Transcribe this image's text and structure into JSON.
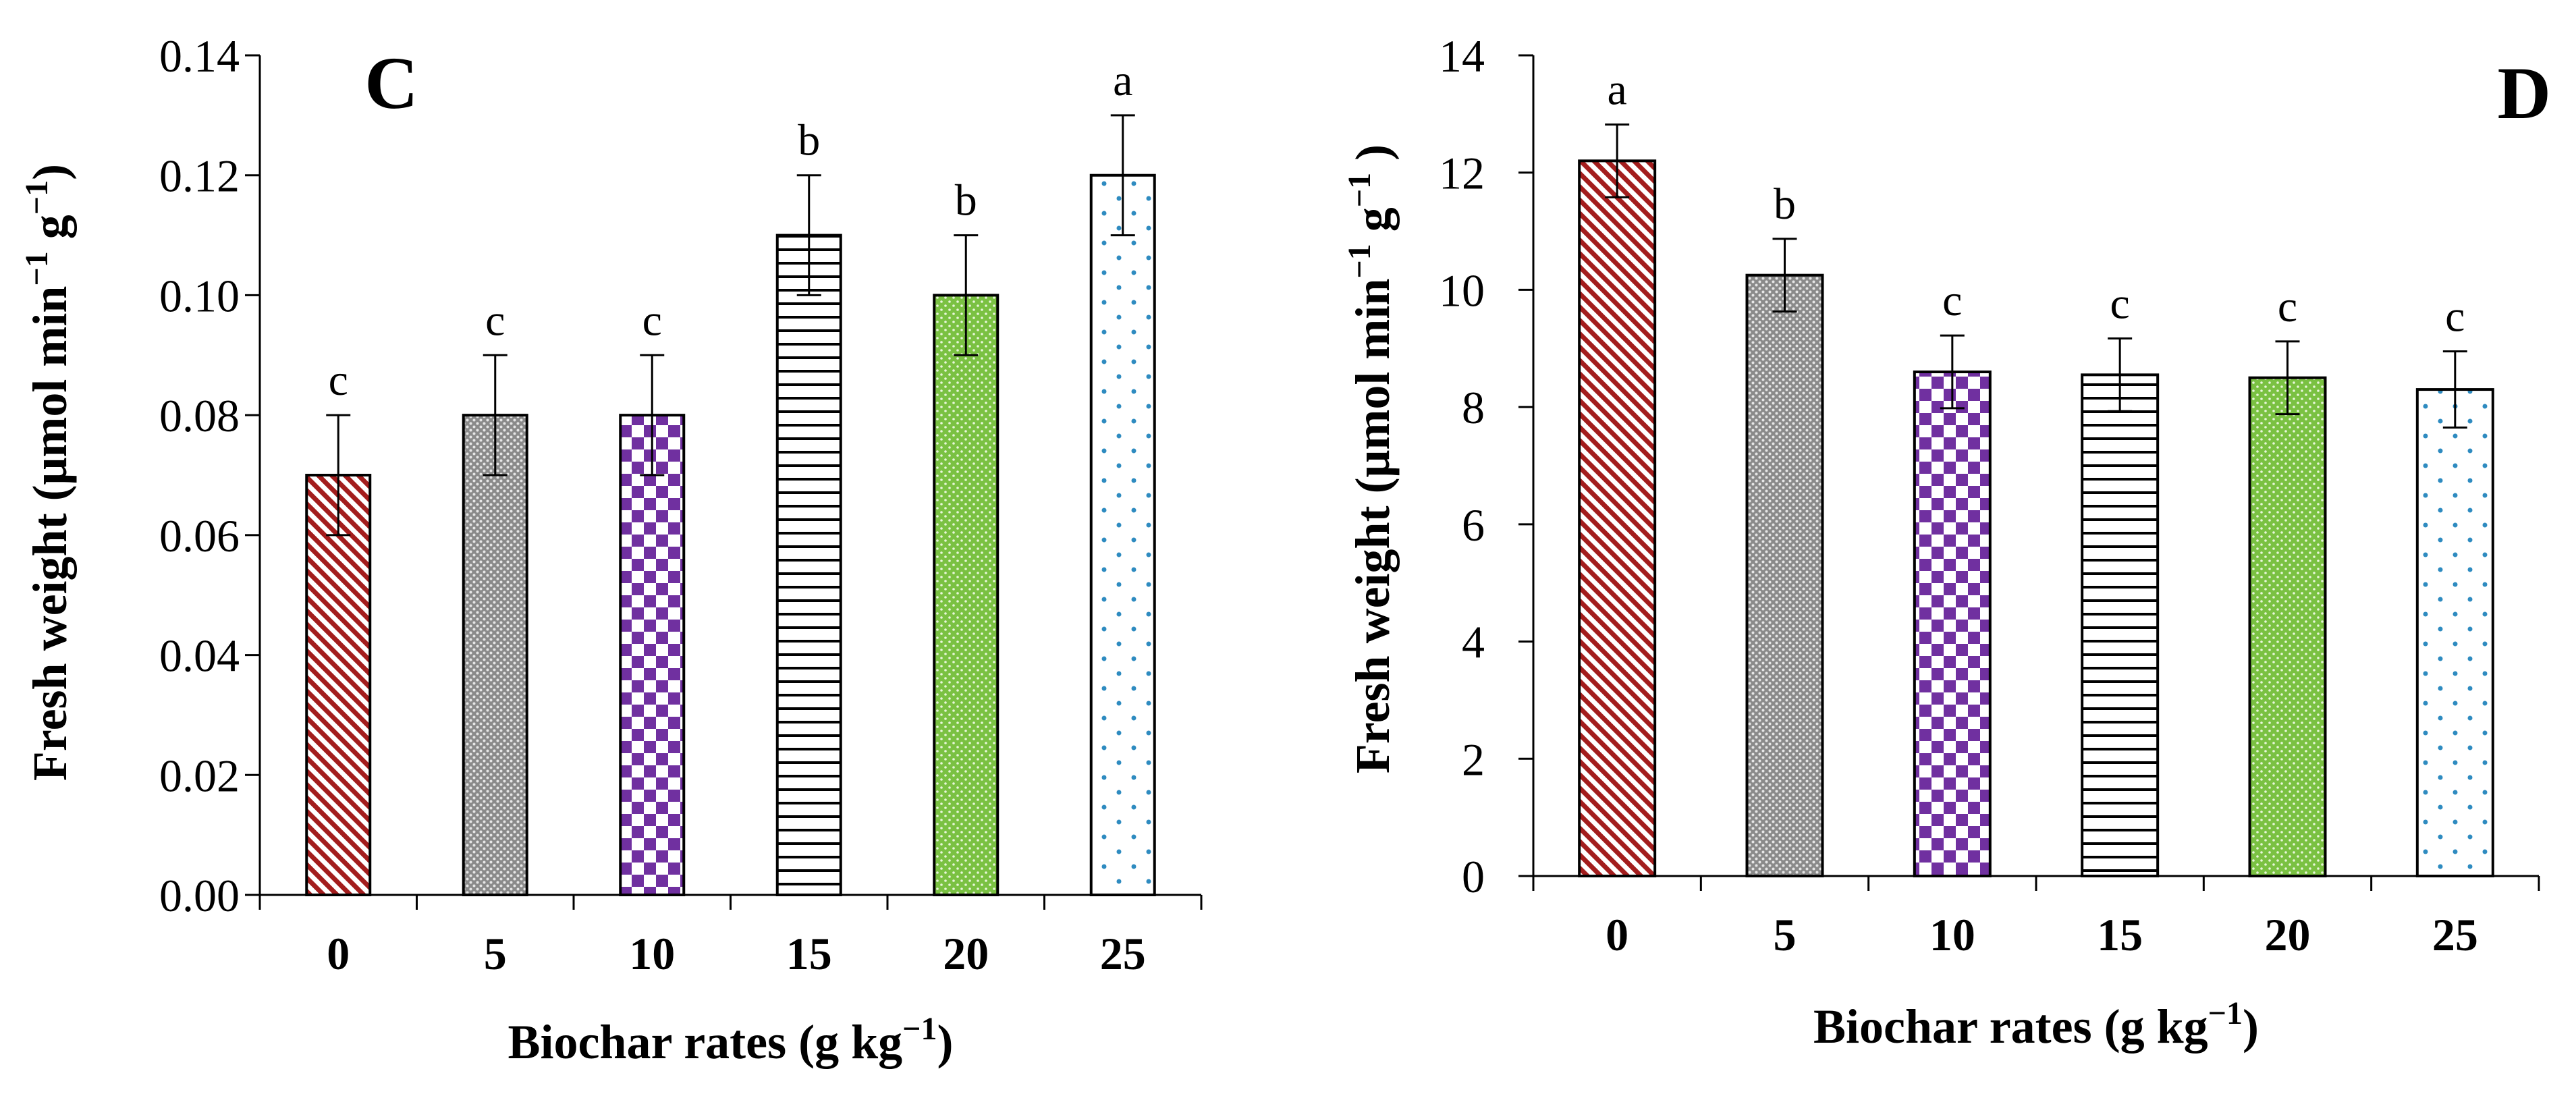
{
  "chart_data": [
    {
      "panel": "C",
      "type": "bar",
      "xlabel": "Biochar rates (g kg",
      "xlabel_unit": "−1",
      "xlabel_tail": ")",
      "ylabel": "Fresh weight (μmol min",
      "ylabel_sup1": "−1",
      "ylabel_mid": " g",
      "ylabel_sup2": "−1",
      "ylabel_tail": ")",
      "categories": [
        "0",
        "5",
        "10",
        "15",
        "20",
        "25"
      ],
      "values": [
        0.07,
        0.08,
        0.08,
        0.11,
        0.1,
        0.12
      ],
      "errors": [
        0.01,
        0.01,
        0.01,
        0.01,
        0.01,
        0.01
      ],
      "letters": [
        "c",
        "c",
        "c",
        "b",
        "b",
        "a"
      ],
      "ylim": [
        0,
        0.14
      ],
      "yticks": [
        "0.00",
        "0.02",
        "0.04",
        "0.06",
        "0.08",
        "0.10",
        "0.12",
        "0.14"
      ],
      "grid": false
    },
    {
      "panel": "D",
      "type": "bar",
      "xlabel": "Biochar rates (g kg",
      "xlabel_unit": "−1",
      "xlabel_tail": ")",
      "ylabel": "Fresh weight (μmol min",
      "ylabel_sup1": "−1",
      "ylabel_mid": " g",
      "ylabel_sup2": "−1",
      "ylabel_tail": " )",
      "categories": [
        "0",
        "5",
        "10",
        "15",
        "20",
        "25"
      ],
      "values": [
        12.2,
        10.25,
        8.6,
        8.55,
        8.5,
        8.3
      ],
      "errors": [
        0.62,
        0.62,
        0.62,
        0.62,
        0.62,
        0.65
      ],
      "letters": [
        "a",
        "b",
        "c",
        "c",
        "c",
        "c"
      ],
      "ylim": [
        0,
        14
      ],
      "yticks": [
        "0",
        "2",
        "4",
        "6",
        "8",
        "10",
        "12",
        "14"
      ],
      "grid": false
    }
  ],
  "colors": {
    "bar0": "#a31d1d",
    "bar1": "#8a8a8a",
    "bar2": "#7030a0",
    "bar3": "#000000",
    "bar4": "#7ac142",
    "bar5": "#2e8bc0"
  }
}
